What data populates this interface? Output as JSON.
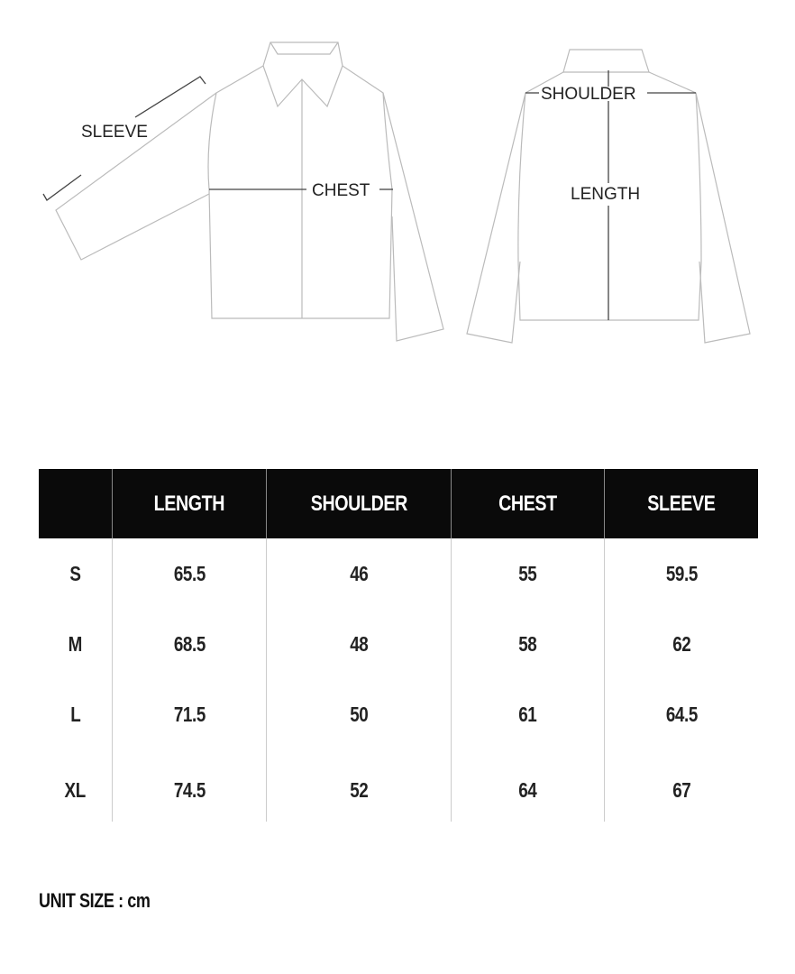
{
  "diagram": {
    "front_labels": {
      "sleeve": "SLEEVE",
      "chest": "CHEST"
    },
    "back_labels": {
      "shoulder": "SHOULDER",
      "length": "LENGTH"
    }
  },
  "size_table": {
    "headers": [
      "",
      "LENGTH",
      "SHOULDER",
      "CHEST",
      "SLEEVE"
    ],
    "rows": [
      {
        "size": "S",
        "values": [
          "65.5",
          "46",
          "55",
          "59.5"
        ]
      },
      {
        "size": "M",
        "values": [
          "68.5",
          "48",
          "58",
          "62"
        ]
      },
      {
        "size": "L",
        "values": [
          "71.5",
          "50",
          "61",
          "64.5"
        ]
      },
      {
        "size": "XL",
        "values": [
          "74.5",
          "52",
          "64",
          "67"
        ]
      }
    ]
  },
  "unit_note": "UNIT SIZE : cm",
  "colors": {
    "header_bg": "#0a0a0a",
    "header_text": "#ffffff",
    "text": "#222222"
  }
}
